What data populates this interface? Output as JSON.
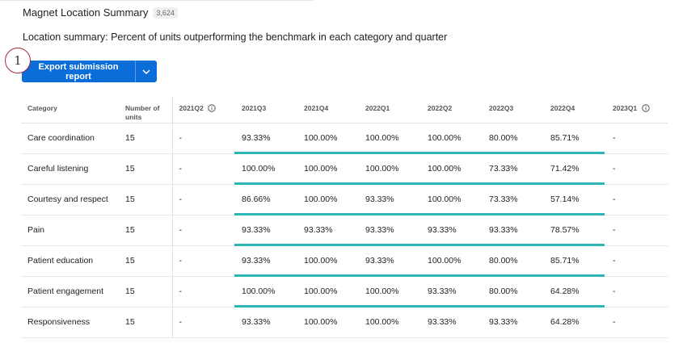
{
  "widget": {
    "title": "Magnet Location Summary",
    "count": "3,624",
    "subtitle": "Location summary: Percent of units outperforming the benchmark in each category and quarter",
    "step_number": "1"
  },
  "toolbar": {
    "export_label": "Export submission report",
    "dropdown_icon": "chevron-down-icon"
  },
  "accent_colors": {
    "button": "#0b6dd8",
    "highlight_bar": "#2eb5b5",
    "step_ring": "#a52a3a"
  },
  "table": {
    "headers": {
      "category": "Category",
      "units_line1": "Number of",
      "units_line2": "units",
      "quarters": [
        "2021Q2",
        "2021Q3",
        "2021Q4",
        "2022Q1",
        "2022Q2",
        "2022Q3",
        "2022Q4",
        "2023Q1"
      ]
    },
    "rows": [
      {
        "category": "Care coordination",
        "units": "15",
        "values": [
          "-",
          "93.33%",
          "100.00%",
          "100.00%",
          "100.00%",
          "80.00%",
          "85.71%",
          "-"
        ]
      },
      {
        "category": "Careful listening",
        "units": "15",
        "values": [
          "-",
          "100.00%",
          "100.00%",
          "100.00%",
          "100.00%",
          "73.33%",
          "71.42%",
          "-"
        ]
      },
      {
        "category": "Courtesy and respect",
        "units": "15",
        "values": [
          "-",
          "86.66%",
          "100.00%",
          "93.33%",
          "100.00%",
          "73.33%",
          "57.14%",
          "-"
        ]
      },
      {
        "category": "Pain",
        "units": "15",
        "values": [
          "-",
          "93.33%",
          "93.33%",
          "93.33%",
          "93.33%",
          "93.33%",
          "78.57%",
          "-"
        ]
      },
      {
        "category": "Patient education",
        "units": "15",
        "values": [
          "-",
          "93.33%",
          "100.00%",
          "93.33%",
          "100.00%",
          "80.00%",
          "85.71%",
          "-"
        ]
      },
      {
        "category": "Patient engagement",
        "units": "15",
        "values": [
          "-",
          "100.00%",
          "100.00%",
          "100.00%",
          "93.33%",
          "80.00%",
          "64.28%",
          "-"
        ]
      },
      {
        "category": "Responsiveness",
        "units": "15",
        "values": [
          "-",
          "93.33%",
          "100.00%",
          "100.00%",
          "93.33%",
          "93.33%",
          "64.28%",
          "-"
        ]
      }
    ]
  }
}
